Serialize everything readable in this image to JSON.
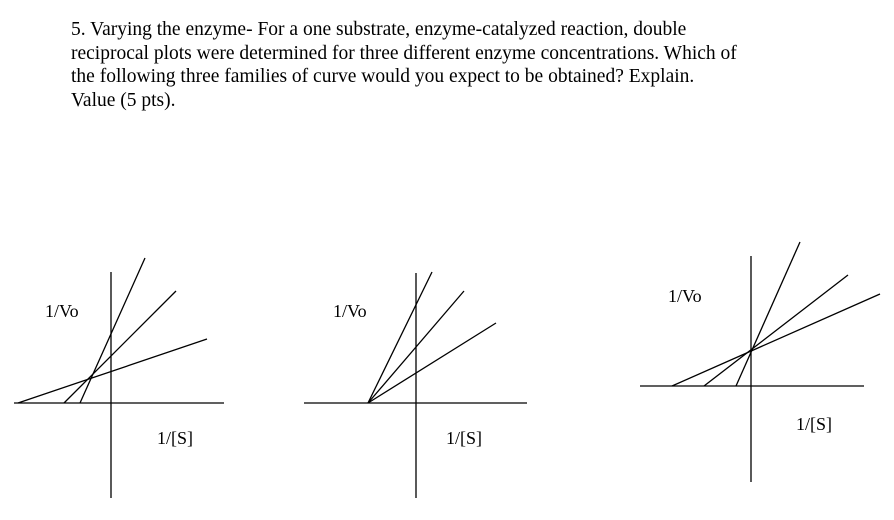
{
  "question": {
    "lines": [
      "5. Varying the enzyme- For a one substrate, enzyme-catalyzed reaction, double",
      "reciprocal plots were determined for three different enzyme concentrations. Which of",
      "the following three families of curve would you expect to be obtained? Explain.",
      "Value (5 pts)."
    ]
  },
  "plots": [
    {
      "ylabel": "1/Vo",
      "xlabel": "1/[S]"
    },
    {
      "ylabel": "1/Vo",
      "xlabel": "1/[S]"
    },
    {
      "ylabel": "1/Vo",
      "xlabel": "1/[S]"
    }
  ]
}
